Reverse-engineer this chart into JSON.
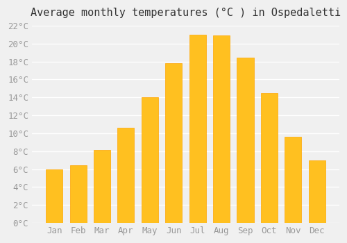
{
  "title": "Average monthly temperatures (°C ) in Ospedaletti",
  "months": [
    "Jan",
    "Feb",
    "Mar",
    "Apr",
    "May",
    "Jun",
    "Jul",
    "Aug",
    "Sep",
    "Oct",
    "Nov",
    "Dec"
  ],
  "values": [
    6.0,
    6.4,
    8.1,
    10.6,
    14.0,
    17.8,
    21.0,
    20.9,
    18.4,
    14.5,
    9.6,
    7.0
  ],
  "bar_color": "#FFC020",
  "bar_edge_color": "#FFA500",
  "background_color": "#F0F0F0",
  "grid_color": "#FFFFFF",
  "ylim": [
    0,
    22
  ],
  "yticks": [
    0,
    2,
    4,
    6,
    8,
    10,
    12,
    14,
    16,
    18,
    20,
    22
  ],
  "title_fontsize": 11,
  "tick_fontsize": 9,
  "tick_color": "#999999",
  "bar_width": 0.7
}
